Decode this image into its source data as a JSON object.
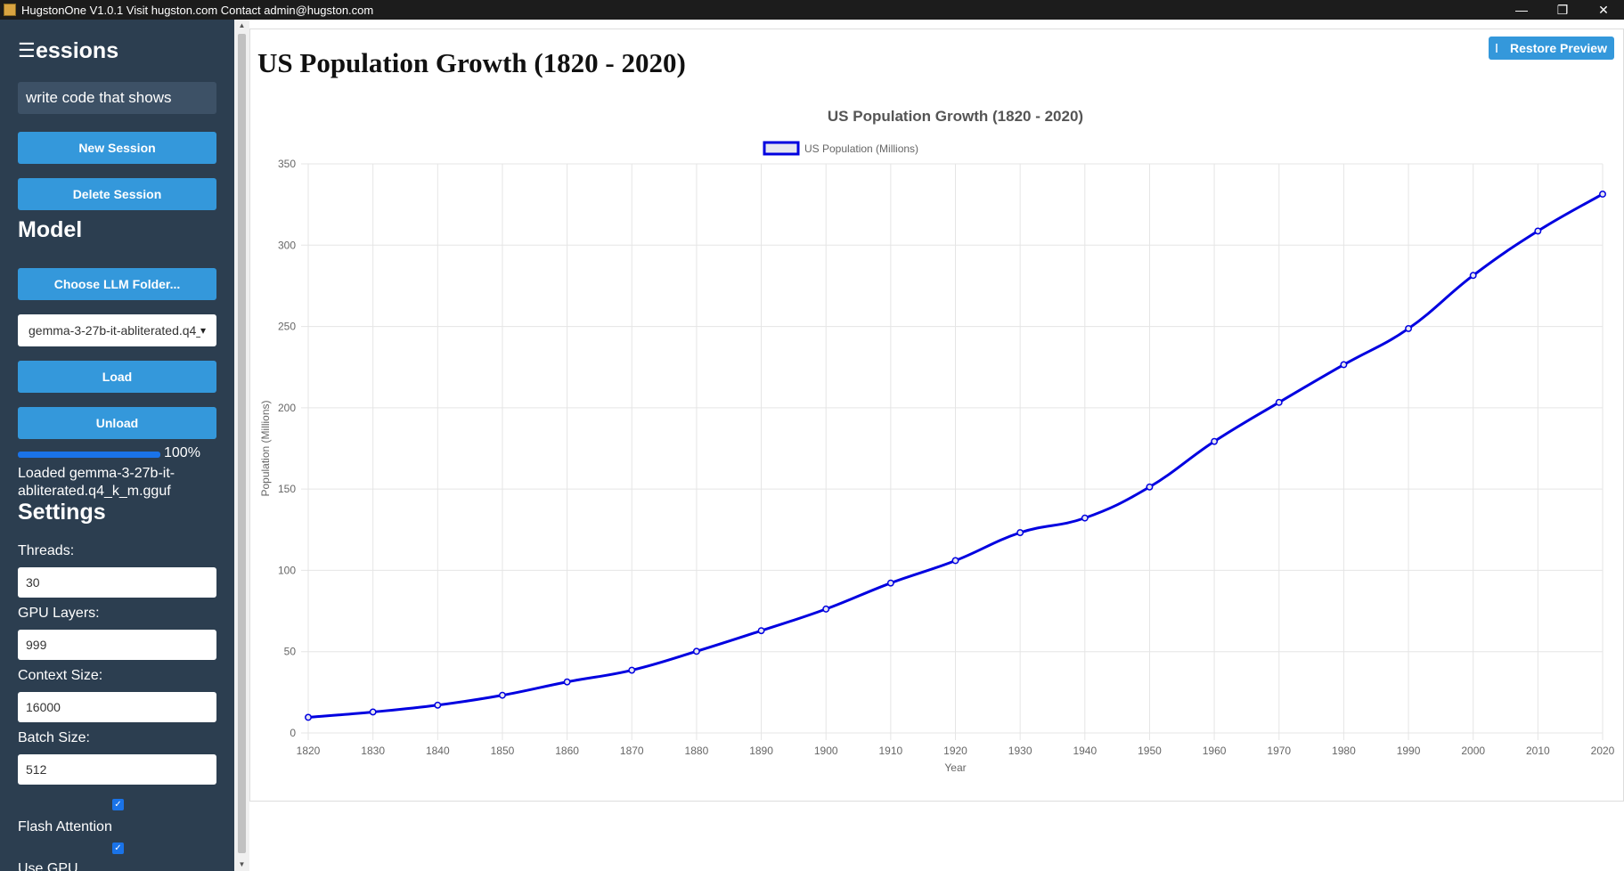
{
  "window": {
    "title": "HugstonOne V1.0.1 Visit hugston.com Contact admin@hugston.com",
    "minimize_glyph": "—",
    "maximize_glyph": "❐",
    "close_glyph": "✕"
  },
  "sidebar": {
    "menu_glyph": "☰",
    "sessions_heading": "essions",
    "session_input_value": "write code that shows",
    "new_session_label": "New Session",
    "delete_session_label": "Delete Session",
    "model_heading": "Model",
    "choose_folder_label": "Choose LLM Folder...",
    "model_select_value": "gemma-3-27b-it-abliterated.q4_k_m.gguf",
    "load_label": "Load",
    "unload_label": "Unload",
    "progress_percent": 100,
    "progress_text": "100%",
    "loaded_status": "Loaded gemma-3-27b-it-abliterated.q4_k_m.gguf",
    "settings_heading": "Settings",
    "threads_label": "Threads:",
    "threads_value": "30",
    "gpu_layers_label": "GPU Layers:",
    "gpu_layers_value": "999",
    "context_size_label": "Context Size:",
    "context_size_value": "16000",
    "batch_size_label": "Batch Size:",
    "batch_size_value": "512",
    "flash_attention_label": "Flash Attention",
    "flash_attention_checked": true,
    "use_gpu_checked": true,
    "use_gpu_label": "Use GPU"
  },
  "main": {
    "page_title": "US Population Growth (1820 - 2020)",
    "restore_preview_label": "Restore Preview"
  },
  "chart_data": {
    "type": "line",
    "title": "US Population Growth (1820 - 2020)",
    "xlabel": "Year",
    "ylabel": "Population (Millions)",
    "ylim": [
      0,
      350
    ],
    "yticks": [
      0,
      50,
      100,
      150,
      200,
      250,
      300,
      350
    ],
    "grid": true,
    "legend_position": "top-center",
    "series": [
      {
        "name": "US Population (Millions)",
        "color": "#0000e0",
        "fill_color": "#e6e6f0",
        "x": [
          1820,
          1830,
          1840,
          1850,
          1860,
          1870,
          1880,
          1890,
          1900,
          1910,
          1920,
          1930,
          1940,
          1950,
          1960,
          1970,
          1980,
          1990,
          2000,
          2010,
          2020
        ],
        "values": [
          9.6,
          12.9,
          17.1,
          23.2,
          31.4,
          38.6,
          50.2,
          62.9,
          76.2,
          92.2,
          106.0,
          123.2,
          132.2,
          151.3,
          179.3,
          203.3,
          226.5,
          248.7,
          281.4,
          308.7,
          331.4
        ]
      }
    ]
  }
}
